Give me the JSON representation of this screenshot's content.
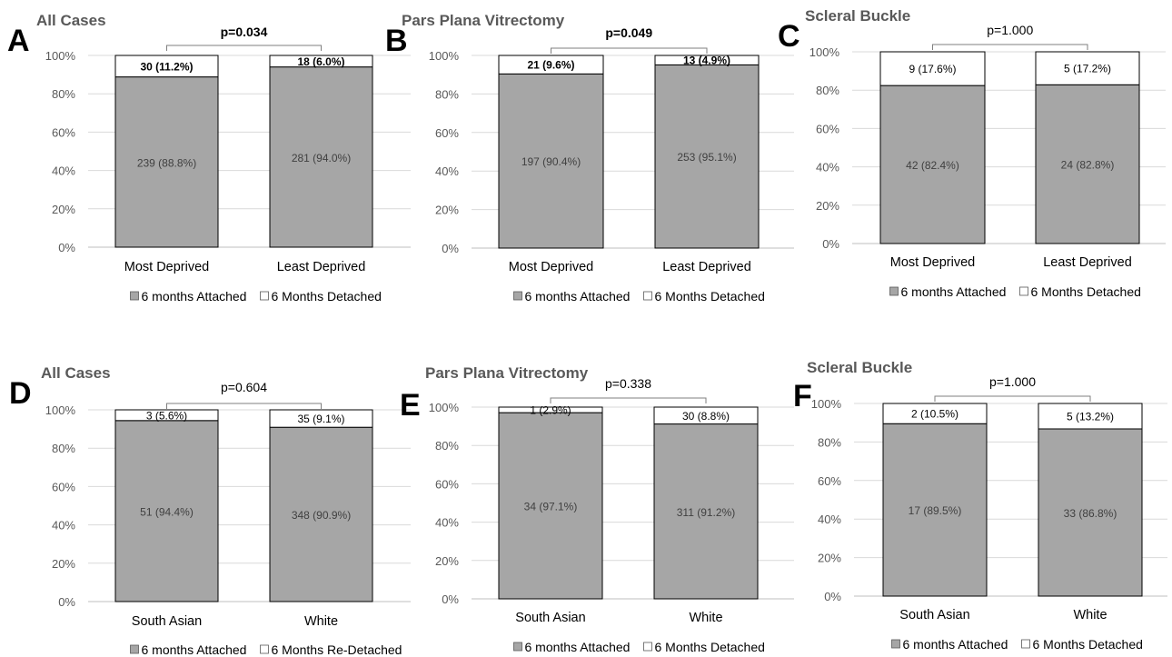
{
  "colors": {
    "attached": "#a6a6a6",
    "detached": "#ffffff",
    "bar_stroke": "#000000",
    "grid": "#d9d9d9",
    "axis": "#bfbfbf",
    "bracket": "#7f7f7f",
    "title": "#595959"
  },
  "chart_data": [
    {
      "panel": "A",
      "type": "bar",
      "stacked": true,
      "title": "All Cases",
      "categories": [
        "Most Deprived",
        "Least Deprived"
      ],
      "series": [
        {
          "name": "6 months Attached",
          "values": [
            88.8,
            94.0
          ],
          "labels": [
            "239 (88.8%)",
            "281 (94.0%)"
          ]
        },
        {
          "name": "6 Months Detached",
          "values": [
            11.2,
            6.0
          ],
          "labels": [
            "30 (11.2%)",
            "18 (6.0%)"
          ]
        }
      ],
      "ylim": [
        0,
        100
      ],
      "yticks": [
        "0%",
        "20%",
        "40%",
        "60%",
        "80%",
        "100%"
      ],
      "p_value": "p=0.034",
      "p_bold": true,
      "detached_bold": true,
      "grid": true,
      "legend": "bottom"
    },
    {
      "panel": "B",
      "type": "bar",
      "stacked": true,
      "title": "Pars Plana Vitrectomy",
      "categories": [
        "Most Deprived",
        "Least Deprived"
      ],
      "series": [
        {
          "name": "6 months Attached",
          "values": [
            90.4,
            95.1
          ],
          "labels": [
            "197 (90.4%)",
            "253 (95.1%)"
          ]
        },
        {
          "name": "6 Months Detached",
          "values": [
            9.6,
            4.9
          ],
          "labels": [
            "21 (9.6%)",
            "13 (4.9%)"
          ]
        }
      ],
      "ylim": [
        0,
        100
      ],
      "yticks": [
        "0%",
        "20%",
        "40%",
        "60%",
        "80%",
        "100%"
      ],
      "p_value": "p=0.049",
      "p_bold": true,
      "detached_bold": true,
      "grid": true,
      "legend": "bottom"
    },
    {
      "panel": "C",
      "type": "bar",
      "stacked": true,
      "title": "Scleral Buckle",
      "categories": [
        "Most Deprived",
        "Least Deprived"
      ],
      "series": [
        {
          "name": "6 months Attached",
          "values": [
            82.4,
            82.8
          ],
          "labels": [
            "42 (82.4%)",
            "24 (82.8%)"
          ]
        },
        {
          "name": "6 Months Detached",
          "values": [
            17.6,
            17.2
          ],
          "labels": [
            "9 (17.6%)",
            "5 (17.2%)"
          ]
        }
      ],
      "ylim": [
        0,
        100
      ],
      "yticks": [
        "0%",
        "20%",
        "40%",
        "60%",
        "80%",
        "100%"
      ],
      "p_value": "p=1.000",
      "p_bold": false,
      "detached_bold": false,
      "grid": true,
      "legend": "bottom"
    },
    {
      "panel": "D",
      "type": "bar",
      "stacked": true,
      "title": "All Cases",
      "categories": [
        "South Asian",
        "White"
      ],
      "series": [
        {
          "name": "6 months Attached",
          "values": [
            94.4,
            90.9
          ],
          "labels": [
            "51 (94.4%)",
            "348 (90.9%)"
          ]
        },
        {
          "name": "6 Months Re-Detached",
          "values": [
            5.6,
            9.1
          ],
          "labels": [
            "3 (5.6%)",
            "35 (9.1%)"
          ]
        }
      ],
      "ylim": [
        0,
        100
      ],
      "yticks": [
        "0%",
        "20%",
        "40%",
        "60%",
        "80%",
        "100%"
      ],
      "p_value": "p=0.604",
      "p_bold": false,
      "detached_bold": false,
      "grid": true,
      "legend": "bottom"
    },
    {
      "panel": "E",
      "type": "bar",
      "stacked": true,
      "title": "Pars Plana Vitrectomy",
      "categories": [
        "South Asian",
        "White"
      ],
      "series": [
        {
          "name": "6 months Attached",
          "values": [
            97.1,
            91.2
          ],
          "labels": [
            "34 (97.1%)",
            "311 (91.2%)"
          ]
        },
        {
          "name": "6 Months Detached",
          "values": [
            2.9,
            8.8
          ],
          "labels": [
            "1 (2.9%)",
            "30 (8.8%)"
          ]
        }
      ],
      "ylim": [
        0,
        100
      ],
      "yticks": [
        "0%",
        "20%",
        "40%",
        "60%",
        "80%",
        "100%"
      ],
      "p_value": "p=0.338",
      "p_bold": false,
      "detached_bold": false,
      "grid": true,
      "legend": "bottom"
    },
    {
      "panel": "F",
      "type": "bar",
      "stacked": true,
      "title": "Scleral Buckle",
      "categories": [
        "South Asian",
        "White"
      ],
      "series": [
        {
          "name": "6 months Attached",
          "values": [
            89.5,
            86.8
          ],
          "labels": [
            "17 (89.5%)",
            "33 (86.8%)"
          ]
        },
        {
          "name": "6 Months Detached",
          "values": [
            10.5,
            13.2
          ],
          "labels": [
            "2 (10.5%)",
            "5 (13.2%)"
          ]
        }
      ],
      "ylim": [
        0,
        100
      ],
      "yticks": [
        "0%",
        "20%",
        "40%",
        "60%",
        "80%",
        "100%"
      ],
      "p_value": "p=1.000",
      "p_bold": false,
      "detached_bold": false,
      "grid": true,
      "legend": "bottom"
    }
  ]
}
